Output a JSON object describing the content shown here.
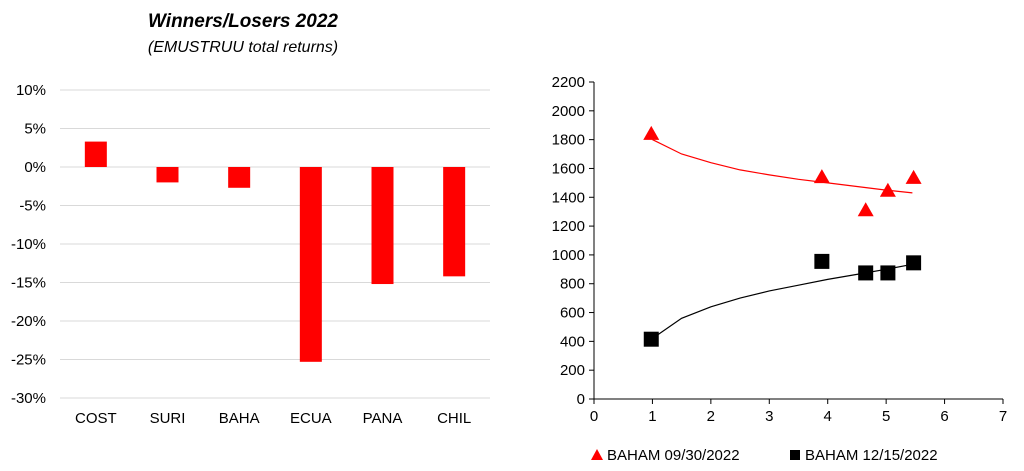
{
  "chart_data": [
    {
      "type": "bar",
      "title": "Winners/Losers 2022",
      "subtitle": "(EMUSTRUU total returns)",
      "categories": [
        "COST",
        "SURI",
        "BAHA",
        "ECUA",
        "PANA",
        "CHIL"
      ],
      "series": [
        {
          "values": [
            3.3,
            -2.0,
            -2.7,
            -25.3,
            -15.2,
            -14.2
          ],
          "color": "#ff0000"
        }
      ],
      "ylim": [
        -30,
        10
      ],
      "yticks": [
        10,
        5,
        0,
        -5,
        -10,
        -15,
        -20,
        -25,
        -30
      ],
      "ytick_labels": [
        "10%",
        "5%",
        "0%",
        "-5%",
        "-10%",
        "-15%",
        "-20%",
        "-25%",
        "-30%"
      ],
      "unit": "%",
      "grid": true,
      "legend": false
    },
    {
      "type": "scatter",
      "xlim": [
        0,
        7
      ],
      "ylim": [
        0,
        2200
      ],
      "xticks": [
        0,
        1,
        2,
        3,
        4,
        5,
        6,
        7
      ],
      "yticks": [
        0,
        200,
        400,
        600,
        800,
        1000,
        1200,
        1400,
        1600,
        1800,
        2000,
        2200
      ],
      "grid": false,
      "legend": "bottom",
      "series": [
        {
          "name": "BAHAM 09/30/2022",
          "marker": "triangle",
          "color": "#ff0000",
          "points": [
            {
              "x": 0.98,
              "y": 1840
            },
            {
              "x": 3.9,
              "y": 1540
            },
            {
              "x": 4.65,
              "y": 1310
            },
            {
              "x": 5.03,
              "y": 1445
            },
            {
              "x": 5.47,
              "y": 1535
            }
          ],
          "trendline": [
            [
              1.0,
              1800
            ],
            [
              1.5,
              1700
            ],
            [
              2.0,
              1640
            ],
            [
              2.5,
              1590
            ],
            [
              3.0,
              1555
            ],
            [
              3.5,
              1525
            ],
            [
              4.0,
              1500
            ],
            [
              4.5,
              1475
            ],
            [
              5.0,
              1450
            ],
            [
              5.45,
              1430
            ]
          ]
        },
        {
          "name": "BAHAM 12/15/2022",
          "marker": "square",
          "color": "#000000",
          "points": [
            {
              "x": 0.98,
              "y": 415
            },
            {
              "x": 3.9,
              "y": 955
            },
            {
              "x": 4.65,
              "y": 875
            },
            {
              "x": 5.03,
              "y": 875
            },
            {
              "x": 5.47,
              "y": 945
            }
          ],
          "trendline": [
            [
              1.0,
              420
            ],
            [
              1.5,
              560
            ],
            [
              2.0,
              640
            ],
            [
              2.5,
              700
            ],
            [
              3.0,
              750
            ],
            [
              3.5,
              790
            ],
            [
              4.0,
              830
            ],
            [
              4.5,
              865
            ],
            [
              5.0,
              900
            ],
            [
              5.45,
              935
            ]
          ]
        }
      ]
    }
  ]
}
